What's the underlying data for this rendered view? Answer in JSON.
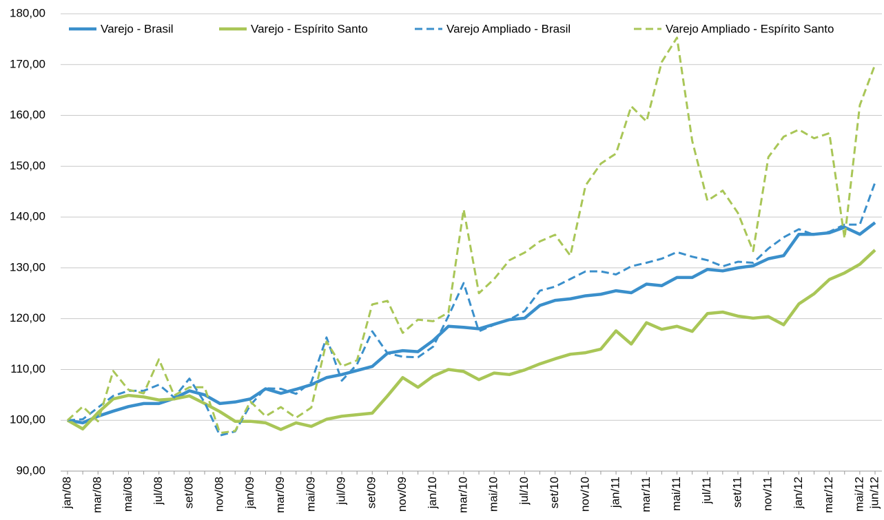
{
  "chart_data": {
    "type": "line",
    "categories": [
      "jan/08",
      null,
      "mar/08",
      null,
      "mai/08",
      null,
      "jul/08",
      null,
      "set/08",
      null,
      "nov/08",
      null,
      "jan/09",
      null,
      "mar/09",
      null,
      "mai/09",
      null,
      "jul/09",
      null,
      "set/09",
      null,
      "nov/09",
      null,
      "jan/10",
      null,
      "mar/10",
      null,
      "mai/10",
      null,
      "jul/10",
      null,
      "set/10",
      null,
      "nov/10",
      null,
      "jan/11",
      null,
      "mar/11",
      null,
      "mai/11",
      null,
      "jul/11",
      null,
      "set/11",
      null,
      "nov/11",
      null,
      "jan/12",
      null,
      "mar/12",
      null,
      "mai/12",
      "jun/12"
    ],
    "series": [
      {
        "name": "Varejo - Brasil",
        "color": "#3a8fcb",
        "dashed": false,
        "values": [
          100,
          99.5,
          100.8,
          101.8,
          102.7,
          103.3,
          103.3,
          104.3,
          105.8,
          105,
          103.3,
          103.6,
          104.2,
          106.2,
          105.3,
          106.1,
          107,
          108.4,
          109,
          109.8,
          110.6,
          113.2,
          113.7,
          113.5,
          115.7,
          118.5,
          118.3,
          118,
          118.9,
          119.8,
          120.1,
          122.6,
          123.6,
          123.9,
          124.5,
          124.8,
          125.5,
          125.1,
          126.8,
          126.5,
          128.1,
          128.1,
          129.7,
          129.4,
          130,
          130.4,
          131.8,
          132.4,
          136.6,
          136.6,
          136.9,
          138,
          136.6,
          138.9
        ]
      },
      {
        "name": "Varejo - Espírito Santo",
        "color": "#a9c657",
        "dashed": false,
        "values": [
          100,
          98.3,
          101.5,
          104.2,
          104.9,
          104.6,
          104,
          104.2,
          104.8,
          103.3,
          101.7,
          99.8,
          99.8,
          99.5,
          98.2,
          99.5,
          98.8,
          100.2,
          100.8,
          101.1,
          101.4,
          104.8,
          108.4,
          106.5,
          108.7,
          110,
          109.6,
          108,
          109.3,
          109,
          109.9,
          111.1,
          112.1,
          113,
          113.3,
          114,
          117.6,
          115,
          119.2,
          117.9,
          118.5,
          117.5,
          121,
          121.3,
          120.5,
          120.1,
          120.4,
          118.8,
          122.9,
          124.9,
          127.7,
          129,
          130.7,
          133.5
        ]
      },
      {
        "name": "Varejo Ampliado - Brasil",
        "color": "#3a8fcb",
        "dashed": true,
        "values": [
          100,
          100.2,
          102.5,
          104.8,
          105.8,
          105.8,
          107,
          104.5,
          108.2,
          103.5,
          97,
          97.8,
          103,
          106.3,
          106.2,
          105.2,
          107.5,
          116.3,
          107.8,
          111,
          117.5,
          113.2,
          112.5,
          112.4,
          114.5,
          120.5,
          127,
          117.5,
          118.8,
          119.8,
          121.5,
          125.5,
          126.3,
          127.8,
          129.3,
          129.3,
          128.7,
          130.3,
          131,
          131.8,
          133.1,
          132.2,
          131.5,
          130.3,
          131.2,
          131,
          133.8,
          136,
          137.6,
          136.5,
          137.1,
          138.5,
          138.5,
          146.8
        ]
      },
      {
        "name": "Varejo Ampliado - Espírito Santo",
        "color": "#a9c657",
        "dashed": true,
        "values": [
          100,
          102.7,
          99.8,
          109.7,
          106,
          105.3,
          112,
          104.9,
          106.5,
          106.5,
          97.5,
          97.9,
          103.7,
          100.8,
          102.6,
          100.5,
          102.5,
          115.5,
          110.6,
          111.8,
          122.8,
          123.5,
          117.2,
          119.8,
          119.5,
          121.2,
          141.5,
          125,
          127.8,
          131.5,
          133,
          135.2,
          136.5,
          132.4,
          146.2,
          150.5,
          152.5,
          161.8,
          158.8,
          170.5,
          175.3,
          155,
          143.2,
          145.2,
          140.8,
          133.3,
          151.8,
          155.8,
          157.2,
          155.5,
          156.5,
          135.8,
          162,
          170
        ]
      }
    ],
    "ylim": [
      90,
      180
    ],
    "yticks": [
      {
        "value": 90,
        "label": "90,00"
      },
      {
        "value": 100,
        "label": "100,00"
      },
      {
        "value": 110,
        "label": "110,00"
      },
      {
        "value": 120,
        "label": "120,00"
      },
      {
        "value": 130,
        "label": "130,00"
      },
      {
        "value": 140,
        "label": "140,00"
      },
      {
        "value": 150,
        "label": "150,00"
      },
      {
        "value": 160,
        "label": "160,00"
      },
      {
        "value": 170,
        "label": "170,00"
      },
      {
        "value": 180,
        "label": "180,00"
      }
    ],
    "grid": true,
    "legend": "top"
  }
}
